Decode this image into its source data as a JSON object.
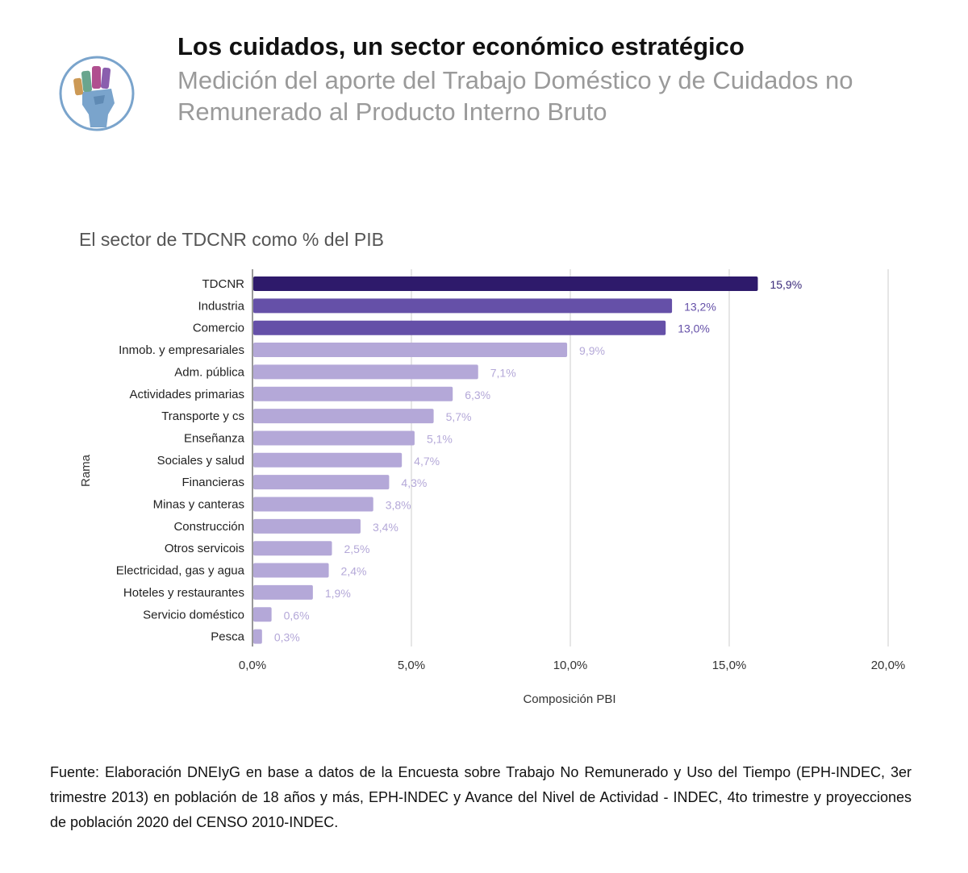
{
  "header": {
    "title": "Los cuidados, un sector económico estratégico",
    "subtitle": "Medición del aporte del Trabajo Doméstico y de Cuidados no Remunerado al Producto Interno Bruto"
  },
  "logo": {
    "icon": "raised-fist-icon",
    "colors": [
      "#cc9955",
      "#6aa58e",
      "#b04f8f",
      "#8a5fae",
      "#7aa4cc"
    ]
  },
  "chart_data": {
    "type": "bar",
    "orientation": "horizontal",
    "title": "El sector de TDCNR como % del PIB",
    "xlabel": "Composición PBI",
    "ylabel": "Rama",
    "xlim": [
      0,
      20
    ],
    "xticks": [
      "0,0%",
      "5,0%",
      "10,0%",
      "15,0%",
      "20,0%"
    ],
    "categories": [
      "TDCNR",
      "Industria",
      "Comercio",
      "Inmob. y empresariales",
      "Adm. pública",
      "Actividades primarias",
      "Transporte y cs",
      "Enseñanza",
      "Sociales y salud",
      "Financieras",
      "Minas y canteras",
      "Construcción",
      "Otros servicois",
      "Electricidad, gas y agua",
      "Hoteles y restaurantes",
      "Servicio doméstico",
      "Pesca"
    ],
    "values": [
      15.9,
      13.2,
      13.0,
      9.9,
      7.1,
      6.3,
      5.7,
      5.1,
      4.7,
      4.3,
      3.8,
      3.4,
      2.5,
      2.4,
      1.9,
      0.6,
      0.3
    ],
    "labels": [
      "15,9%",
      "13,2%",
      "13,0%",
      "9,9%",
      "7,1%",
      "6,3%",
      "5,7%",
      "5,1%",
      "4,7%",
      "4,3%",
      "3,8%",
      "3,4%",
      "2,5%",
      "2,4%",
      "1,9%",
      "0,6%",
      "0,3%"
    ],
    "bar_colors": [
      "#2e1a6b",
      "#6550a8",
      "#6550a8",
      "#b4a8d8",
      "#b4a8d8",
      "#b4a8d8",
      "#b4a8d8",
      "#b4a8d8",
      "#b4a8d8",
      "#b4a8d8",
      "#b4a8d8",
      "#b4a8d8",
      "#b4a8d8",
      "#b4a8d8",
      "#b4a8d8",
      "#b4a8d8",
      "#b4a8d8"
    ],
    "label_colors": [
      "#3a2a7a",
      "#6550a8",
      "#6550a8",
      "#b4a8d8",
      "#b4a8d8",
      "#b4a8d8",
      "#b4a8d8",
      "#b4a8d8",
      "#b4a8d8",
      "#b4a8d8",
      "#b4a8d8",
      "#b4a8d8",
      "#b4a8d8",
      "#b4a8d8",
      "#b4a8d8",
      "#b4a8d8",
      "#b4a8d8"
    ],
    "grid": true
  },
  "footer": {
    "source": "Fuente: Elaboración DNEIyG en base a datos de la Encuesta sobre Trabajo No Remunerado y Uso del Tiempo (EPH-INDEC, 3er trimestre 2013) en población de 18 años y más, EPH-INDEC y Avance del Nivel de Actividad - INDEC, 4to trimestre y proyecciones de población 2020 del CENSO 2010-INDEC."
  }
}
